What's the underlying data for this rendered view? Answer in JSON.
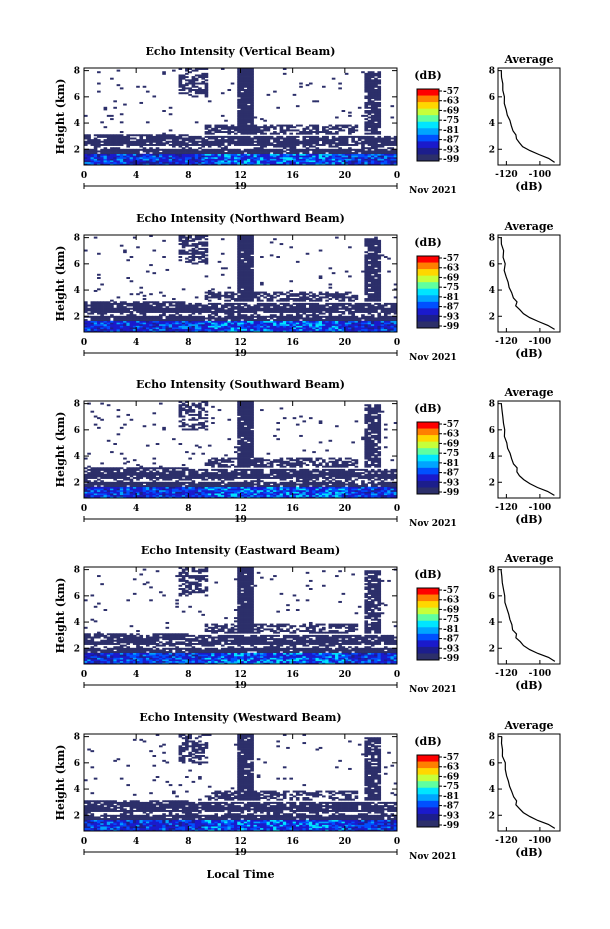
{
  "chart_data": [
    {
      "type": "heatmap",
      "title": "Echo Intensity (Vertical Beam)",
      "ylabel": "Height (km)",
      "colorbar_label": "(dB)"
    },
    {
      "type": "heatmap",
      "title": "Echo Intensity (Northward Beam)",
      "ylabel": "Height (km)",
      "colorbar_label": "(dB)"
    },
    {
      "type": "heatmap",
      "title": "Echo Intensity (Southward Beam)",
      "ylabel": "Height (km)",
      "colorbar_label": "(dB)"
    },
    {
      "type": "heatmap",
      "title": "Echo Intensity (Eastward Beam)",
      "ylabel": "Height (km)",
      "colorbar_label": "(dB)"
    },
    {
      "type": "heatmap",
      "title": "Echo Intensity (Westward Beam)",
      "ylabel": "Height (km)",
      "colorbar_label": "(dB)"
    }
  ],
  "shared": {
    "xticks": [
      "0",
      "4",
      "8",
      "12",
      "16",
      "20",
      "0"
    ],
    "xlim": [
      0,
      24
    ],
    "yticks": [
      "2",
      "4",
      "6",
      "8"
    ],
    "ylim": [
      0.8,
      8.2
    ],
    "day_label": "19",
    "month_label": "Nov 2021",
    "xlabel": "Local Time",
    "colorbar_ticks": [
      "-57",
      "-63",
      "-69",
      "-75",
      "-81",
      "-87",
      "-93",
      "-99"
    ],
    "colorbar_colors": [
      "#ff0000",
      "#ff7f00",
      "#ffd700",
      "#c6ff3a",
      "#5fffa0",
      "#00e5ff",
      "#00a5ff",
      "#0050ff",
      "#1a1acc",
      "#1c1e8c",
      "#2c2f6a"
    ],
    "echo_color": "#2c2f6a",
    "avg_title": "Average",
    "avg_xticks": [
      "-120",
      "-100"
    ],
    "avg_xlim": [
      -125,
      -88
    ],
    "avg_xlabel": "(dB)",
    "avg_profile": {
      "height": [
        1.0,
        1.3,
        1.6,
        1.9,
        2.2,
        2.5,
        2.8,
        3.1,
        3.4,
        3.8,
        4.2,
        4.6,
        5.0,
        5.5,
        6.0,
        6.5,
        7.0,
        7.5,
        8.0
      ],
      "db": [
        -91,
        -95,
        -101,
        -106,
        -110,
        -112,
        -114,
        -114,
        -116,
        -117,
        -118,
        -119,
        -120,
        -121,
        -121,
        -122,
        -122,
        -123,
        -123
      ]
    }
  }
}
